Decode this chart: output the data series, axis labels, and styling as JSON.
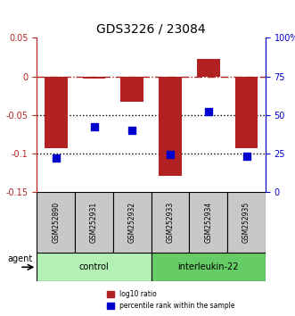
{
  "title": "GDS3226 / 23084",
  "samples": [
    "GSM252890",
    "GSM252931",
    "GSM252932",
    "GSM252933",
    "GSM252934",
    "GSM252935"
  ],
  "log10_ratio": [
    -0.093,
    -0.003,
    -0.033,
    -0.13,
    0.023,
    -0.093
  ],
  "percentile_rank": [
    22,
    42,
    40,
    24,
    52,
    23
  ],
  "ylim_left": [
    -0.15,
    0.05
  ],
  "ylim_right": [
    0,
    100
  ],
  "yticks_left": [
    0.05,
    0,
    -0.05,
    -0.1,
    -0.15
  ],
  "yticks_right": [
    100,
    75,
    50,
    25,
    0
  ],
  "ytick_right_labels": [
    "100%",
    "75",
    "50",
    "25",
    "0"
  ],
  "hlines_dotted": [
    -0.05,
    -0.1
  ],
  "hline_dashdot": 0,
  "bar_color": "#b22222",
  "dot_color": "#0000cc",
  "bar_width": 0.6,
  "dot_size": 40,
  "groups": [
    {
      "label": "control",
      "samples": [
        0,
        1,
        2
      ],
      "color": "#b3f0b3"
    },
    {
      "label": "interleukin-22",
      "samples": [
        3,
        4,
        5
      ],
      "color": "#66cc66"
    }
  ],
  "agent_label": "agent",
  "legend_items": [
    {
      "label": "log10 ratio",
      "color": "#b22222"
    },
    {
      "label": "percentile rank within the sample",
      "color": "#0000cc"
    }
  ],
  "left_tick_color": "#b22222",
  "right_tick_color": "#0000cc",
  "sample_area_bg": "#c8c8c8"
}
